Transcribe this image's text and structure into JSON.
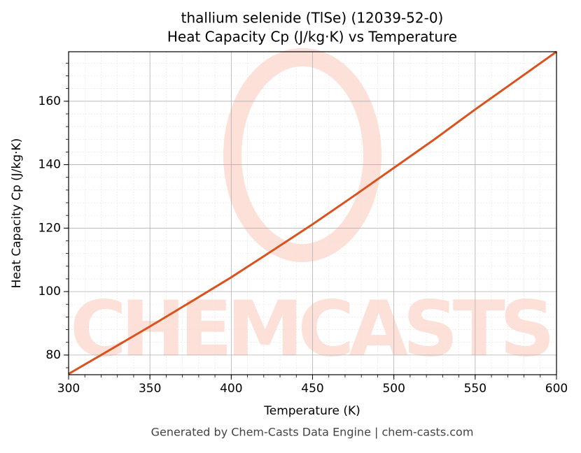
{
  "chart_data": {
    "type": "line",
    "title": "thallium selenide (TlSe) (12039-52-0)",
    "subtitle": "Heat Capacity Cp (J/kg·K) vs Temperature",
    "x_label": "Temperature (K)",
    "y_label": "Heat Capacity Cp (J/kg·K)",
    "watermark": "CHEMCASTS",
    "footer": "Generated by Chem-Casts Data Engine | chem-casts.com",
    "x": [
      300,
      325,
      350,
      375,
      400,
      425,
      450,
      475,
      500,
      525,
      550,
      575,
      600
    ],
    "series": [
      {
        "name": "Heat Capacity Cp",
        "color": "#d9531e",
        "values": [
          74.05,
          81.5,
          89,
          96.7,
          104.5,
          112.8,
          121.2,
          130,
          139,
          148,
          157.4,
          166.5,
          175.6
        ]
      }
    ],
    "xlim": [
      300,
      600
    ],
    "xticks": [
      300,
      350,
      400,
      450,
      500,
      550,
      600
    ],
    "ylim": [
      73.8,
      175.6
    ],
    "yticks": [
      80,
      100,
      120,
      140,
      160
    ],
    "grid": true,
    "minor_grid": true
  }
}
